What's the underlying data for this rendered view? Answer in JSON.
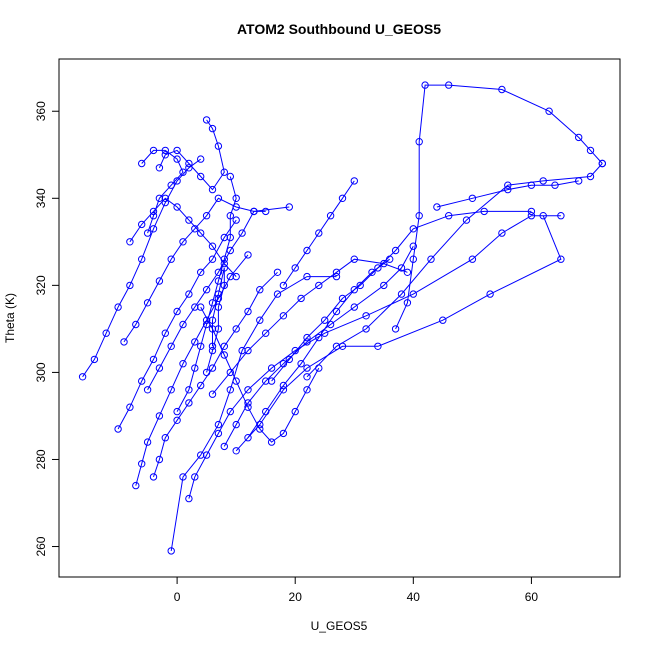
{
  "chart_data": {
    "type": "scatter",
    "title": "ATOM2 Southbound U_GEOS5",
    "xlabel": "U_GEOS5",
    "ylabel": "Theta (K)",
    "xlim": [
      -20,
      75
    ],
    "ylim": [
      253,
      372
    ],
    "xticks": [
      0,
      20,
      40,
      60
    ],
    "yticks": [
      260,
      280,
      300,
      320,
      340,
      360
    ],
    "grid": false,
    "color": "#0000ff",
    "series": [
      {
        "points": [
          [
            -1,
            259
          ],
          [
            1,
            276
          ],
          [
            4,
            281
          ],
          [
            7,
            288
          ],
          [
            9,
            296
          ],
          [
            11,
            305
          ],
          [
            14,
            312
          ],
          [
            17,
            318
          ],
          [
            22,
            322
          ],
          [
            27,
            322
          ]
        ]
      },
      {
        "points": [
          [
            -16,
            299
          ],
          [
            -14,
            303
          ],
          [
            -12,
            309
          ],
          [
            -10,
            315
          ],
          [
            -8,
            320
          ],
          [
            -6,
            326
          ],
          [
            -4,
            333
          ],
          [
            -2,
            339
          ],
          [
            0,
            344
          ],
          [
            2,
            347
          ],
          [
            4,
            349
          ]
        ]
      },
      {
        "points": [
          [
            -10,
            287
          ],
          [
            -8,
            292
          ],
          [
            -6,
            298
          ],
          [
            -4,
            303
          ],
          [
            -2,
            309
          ],
          [
            0,
            314
          ],
          [
            2,
            318
          ],
          [
            4,
            323
          ],
          [
            6,
            326
          ],
          [
            8,
            331
          ],
          [
            10,
            335
          ]
        ]
      },
      {
        "points": [
          [
            -7,
            274
          ],
          [
            -6,
            279
          ],
          [
            -5,
            284
          ],
          [
            -3,
            290
          ],
          [
            -1,
            296
          ],
          [
            1,
            302
          ],
          [
            3,
            307
          ],
          [
            5,
            312
          ],
          [
            7,
            317
          ],
          [
            9,
            322
          ],
          [
            12,
            327
          ]
        ]
      },
      {
        "points": [
          [
            2,
            271
          ],
          [
            3,
            276
          ],
          [
            5,
            281
          ],
          [
            7,
            286
          ],
          [
            9,
            291
          ],
          [
            12,
            296
          ],
          [
            16,
            301
          ],
          [
            20,
            305
          ],
          [
            25,
            309
          ],
          [
            32,
            313
          ],
          [
            40,
            318
          ],
          [
            50,
            326
          ],
          [
            55,
            332
          ],
          [
            60,
            336
          ],
          [
            65,
            336
          ]
        ]
      },
      {
        "points": [
          [
            8,
            283
          ],
          [
            10,
            288
          ],
          [
            12,
            293
          ],
          [
            15,
            298
          ],
          [
            18,
            302
          ],
          [
            22,
            307
          ],
          [
            26,
            311
          ],
          [
            30,
            315
          ],
          [
            35,
            320
          ],
          [
            38,
            324
          ],
          [
            40,
            329
          ]
        ]
      },
      {
        "points": [
          [
            10,
            282
          ],
          [
            14,
            288
          ],
          [
            18,
            296
          ],
          [
            22,
            301
          ],
          [
            28,
            306
          ],
          [
            34,
            306
          ],
          [
            45,
            312
          ],
          [
            53,
            318
          ],
          [
            65,
            326
          ],
          [
            62,
            336
          ]
        ]
      },
      {
        "points": [
          [
            22,
            299
          ],
          [
            27,
            306
          ],
          [
            32,
            310
          ],
          [
            38,
            318
          ],
          [
            43,
            326
          ],
          [
            49,
            335
          ],
          [
            56,
            343
          ],
          [
            62,
            344
          ],
          [
            70,
            345
          ],
          [
            72,
            348
          ]
        ]
      },
      {
        "points": [
          [
            37,
            310
          ],
          [
            39,
            316
          ],
          [
            40,
            326
          ],
          [
            41,
            336
          ],
          [
            41,
            353
          ],
          [
            42,
            366
          ],
          [
            46,
            366
          ],
          [
            55,
            365
          ],
          [
            63,
            360
          ],
          [
            68,
            354
          ],
          [
            70,
            351
          ],
          [
            72,
            348
          ]
        ]
      },
      {
        "points": [
          [
            0,
            291
          ],
          [
            2,
            296
          ],
          [
            3,
            301
          ],
          [
            4,
            306
          ],
          [
            5,
            311
          ],
          [
            6,
            316
          ],
          [
            7,
            321
          ],
          [
            8,
            326
          ],
          [
            9,
            331
          ],
          [
            9,
            336
          ],
          [
            10,
            340
          ],
          [
            9,
            345
          ]
        ]
      },
      {
        "points": [
          [
            -5,
            296
          ],
          [
            -3,
            301
          ],
          [
            -1,
            306
          ],
          [
            1,
            311
          ],
          [
            3,
            315
          ],
          [
            5,
            319
          ],
          [
            7,
            323
          ],
          [
            9,
            328
          ],
          [
            11,
            332
          ],
          [
            13,
            337
          ],
          [
            15,
            337
          ]
        ]
      },
      {
        "points": [
          [
            -3,
            347
          ],
          [
            -2,
            350
          ],
          [
            0,
            351
          ],
          [
            2,
            348
          ],
          [
            4,
            345
          ],
          [
            6,
            342
          ],
          [
            8,
            346
          ],
          [
            7,
            352
          ],
          [
            6,
            356
          ],
          [
            5,
            358
          ]
        ]
      },
      {
        "points": [
          [
            -6,
            348
          ],
          [
            -4,
            351
          ],
          [
            -2,
            351
          ],
          [
            0,
            349
          ],
          [
            1,
            346
          ],
          [
            -1,
            343
          ],
          [
            -3,
            340
          ],
          [
            -4,
            336
          ],
          [
            -5,
            332
          ]
        ]
      },
      {
        "points": [
          [
            4,
            315
          ],
          [
            6,
            310
          ],
          [
            8,
            304
          ],
          [
            10,
            298
          ],
          [
            12,
            292
          ],
          [
            14,
            287
          ],
          [
            16,
            284
          ],
          [
            18,
            286
          ],
          [
            20,
            291
          ],
          [
            22,
            296
          ],
          [
            24,
            301
          ]
        ]
      },
      {
        "points": [
          [
            -9,
            307
          ],
          [
            -7,
            311
          ],
          [
            -5,
            316
          ],
          [
            -3,
            321
          ],
          [
            -1,
            326
          ],
          [
            1,
            330
          ],
          [
            3,
            333
          ],
          [
            5,
            336
          ],
          [
            7,
            340
          ],
          [
            10,
            338
          ],
          [
            13,
            337
          ],
          [
            19,
            338
          ]
        ]
      },
      {
        "points": [
          [
            6,
            295
          ],
          [
            9,
            300
          ],
          [
            12,
            305
          ],
          [
            15,
            309
          ],
          [
            18,
            313
          ],
          [
            21,
            317
          ],
          [
            24,
            320
          ],
          [
            27,
            323
          ],
          [
            30,
            326
          ],
          [
            35,
            325
          ],
          [
            39,
            323
          ]
        ]
      },
      {
        "points": [
          [
            12,
            285
          ],
          [
            15,
            291
          ],
          [
            18,
            297
          ],
          [
            21,
            302
          ],
          [
            24,
            308
          ],
          [
            27,
            314
          ],
          [
            30,
            319
          ],
          [
            33,
            323
          ],
          [
            36,
            326
          ]
        ]
      },
      {
        "points": [
          [
            16,
            298
          ],
          [
            19,
            303
          ],
          [
            22,
            308
          ],
          [
            25,
            312
          ],
          [
            28,
            317
          ],
          [
            31,
            320
          ],
          [
            34,
            324
          ],
          [
            37,
            328
          ],
          [
            40,
            333
          ],
          [
            46,
            336
          ],
          [
            52,
            337
          ],
          [
            60,
            337
          ]
        ]
      },
      {
        "points": [
          [
            -4,
            276
          ],
          [
            -3,
            280
          ],
          [
            -2,
            285
          ],
          [
            0,
            289
          ],
          [
            2,
            293
          ],
          [
            4,
            297
          ],
          [
            6,
            301
          ],
          [
            8,
            306
          ],
          [
            10,
            310
          ],
          [
            12,
            314
          ],
          [
            14,
            319
          ],
          [
            17,
            323
          ]
        ]
      },
      {
        "points": [
          [
            18,
            320
          ],
          [
            20,
            324
          ],
          [
            22,
            328
          ],
          [
            24,
            332
          ],
          [
            26,
            336
          ],
          [
            28,
            340
          ],
          [
            30,
            344
          ]
        ]
      },
      {
        "points": [
          [
            44,
            338
          ],
          [
            50,
            340
          ],
          [
            56,
            342
          ],
          [
            60,
            343
          ],
          [
            64,
            343
          ],
          [
            68,
            344
          ]
        ]
      },
      {
        "points": [
          [
            -8,
            330
          ],
          [
            -6,
            334
          ],
          [
            -4,
            337
          ],
          [
            -2,
            340
          ],
          [
            0,
            338
          ],
          [
            2,
            335
          ],
          [
            4,
            332
          ],
          [
            6,
            329
          ],
          [
            8,
            325
          ],
          [
            10,
            322
          ]
        ]
      },
      {
        "points": [
          [
            5,
            300
          ],
          [
            6,
            305
          ],
          [
            7,
            310
          ],
          [
            7,
            315
          ],
          [
            8,
            320
          ],
          [
            8,
            324
          ],
          [
            7,
            318
          ],
          [
            6,
            312
          ],
          [
            6,
            306
          ]
        ]
      }
    ]
  }
}
